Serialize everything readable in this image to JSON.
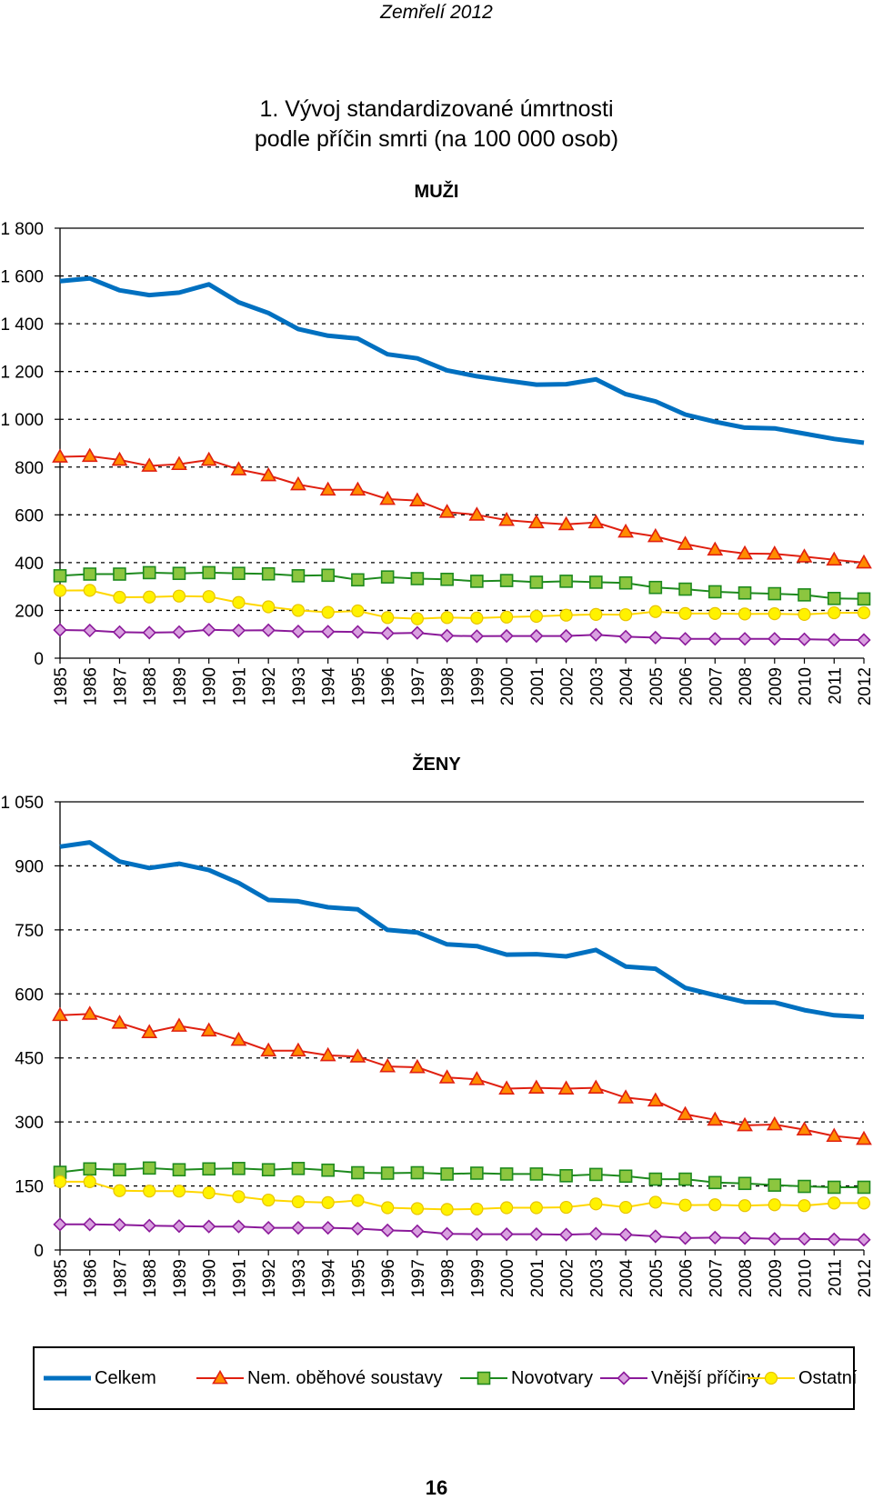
{
  "page": {
    "running_header": "Zemřelí 2012",
    "title_line1": "1. Vývoj standardizované úmrtnosti",
    "title_line2": "podle příčin smrti (na 100 000 osob)",
    "page_number": "16"
  },
  "legend": [
    {
      "key": "celkem",
      "label": "Celkem"
    },
    {
      "key": "obehove",
      "label": "Nem. oběhové soustavy"
    },
    {
      "key": "novotvary",
      "label": "Novotvary"
    },
    {
      "key": "vnejsi",
      "label": "Vnější příčiny"
    },
    {
      "key": "ostatni",
      "label": "Ostatní"
    }
  ],
  "styles": {
    "celkem": {
      "color": "#0070C0",
      "marker": "none"
    },
    "obehove": {
      "color": "#E02010",
      "fill": "#FF8C00",
      "marker": "triangle"
    },
    "novotvary": {
      "color": "#1E8A1E",
      "fill": "#8CC63F",
      "marker": "square"
    },
    "vnejsi": {
      "color": "#8B1A9A",
      "fill": "#D9A0E0",
      "marker": "diamond"
    },
    "ostatni": {
      "color": "#FFD700",
      "fill": "#FFF200",
      "marker": "circle"
    }
  },
  "chart_data": [
    {
      "type": "line",
      "title": "MUŽI",
      "categories": [
        "1985",
        "1986",
        "1987",
        "1988",
        "1989",
        "1990",
        "1991",
        "1992",
        "1993",
        "1994",
        "1995",
        "1996",
        "1997",
        "1998",
        "1999",
        "2000",
        "2001",
        "2002",
        "2003",
        "2004",
        "2005",
        "2006",
        "2007",
        "2008",
        "2009",
        "2010",
        "2011",
        "2012"
      ],
      "ylim": [
        0,
        1800
      ],
      "yticks": [
        0,
        200,
        400,
        600,
        800,
        1000,
        1200,
        1400,
        1600,
        1800
      ],
      "ytick_labels": [
        "0",
        "200",
        "400",
        "600",
        "800",
        "1 000",
        "1 200",
        "1 400",
        "1 600",
        "1 800"
      ],
      "series": [
        {
          "key": "celkem",
          "name": "Celkem",
          "values": [
            1578,
            1590,
            1540,
            1520,
            1530,
            1565,
            1490,
            1445,
            1378,
            1350,
            1338,
            1272,
            1255,
            1205,
            1180,
            1162,
            1145,
            1147,
            1167,
            1105,
            1075,
            1020,
            990,
            965,
            962,
            940,
            918,
            902
          ]
        },
        {
          "key": "obehove",
          "name": "Nem. oběhové soustavy",
          "values": [
            843,
            846,
            830,
            805,
            812,
            830,
            790,
            765,
            727,
            705,
            705,
            666,
            660,
            612,
            600,
            578,
            568,
            560,
            568,
            529,
            510,
            478,
            454,
            438,
            437,
            425,
            412,
            400
          ]
        },
        {
          "key": "novotvary",
          "name": "Novotvary",
          "values": [
            345,
            352,
            352,
            358,
            355,
            358,
            355,
            353,
            345,
            347,
            328,
            340,
            333,
            330,
            322,
            325,
            318,
            322,
            318,
            315,
            296,
            289,
            278,
            273,
            270,
            265,
            250,
            248
          ]
        },
        {
          "key": "ostatni",
          "name": "Ostatní",
          "values": [
            283,
            284,
            255,
            256,
            260,
            258,
            233,
            215,
            200,
            192,
            198,
            170,
            165,
            170,
            168,
            172,
            175,
            180,
            183,
            182,
            195,
            187,
            187,
            185,
            186,
            183,
            190,
            190
          ]
        },
        {
          "key": "vnejsi",
          "name": "Vnější příčiny",
          "values": [
            118,
            116,
            109,
            107,
            109,
            119,
            116,
            117,
            112,
            111,
            110,
            104,
            106,
            94,
            92,
            93,
            93,
            93,
            98,
            90,
            86,
            81,
            81,
            81,
            81,
            79,
            77,
            76
          ]
        }
      ]
    },
    {
      "type": "line",
      "title": "ŽENY",
      "categories": [
        "1985",
        "1986",
        "1987",
        "1988",
        "1989",
        "1990",
        "1991",
        "1992",
        "1993",
        "1994",
        "1995",
        "1996",
        "1997",
        "1998",
        "1999",
        "2000",
        "2001",
        "2002",
        "2003",
        "2004",
        "2005",
        "2006",
        "2007",
        "2008",
        "2009",
        "2010",
        "2011",
        "2012"
      ],
      "ylim": [
        0,
        1050
      ],
      "yticks": [
        0,
        150,
        300,
        450,
        600,
        750,
        900,
        1050
      ],
      "ytick_labels": [
        "0",
        "150",
        "300",
        "450",
        "600",
        "750",
        "900",
        "1 050"
      ],
      "series": [
        {
          "key": "celkem",
          "name": "Celkem",
          "values": [
            945,
            955,
            910,
            895,
            905,
            890,
            860,
            820,
            817,
            803,
            798,
            750,
            744,
            716,
            712,
            692,
            693,
            688,
            703,
            664,
            659,
            614,
            597,
            581,
            580,
            562,
            550,
            546
          ]
        },
        {
          "key": "obehove",
          "name": "Nem. oběhové soustavy",
          "values": [
            550,
            553,
            532,
            510,
            525,
            514,
            492,
            467,
            467,
            456,
            453,
            430,
            428,
            404,
            400,
            378,
            380,
            378,
            380,
            357,
            350,
            318,
            305,
            292,
            294,
            282,
            267,
            260
          ]
        },
        {
          "key": "novotvary",
          "name": "Novotvary",
          "values": [
            182,
            190,
            188,
            192,
            188,
            190,
            191,
            188,
            191,
            187,
            181,
            180,
            181,
            178,
            180,
            178,
            178,
            174,
            177,
            173,
            166,
            166,
            158,
            156,
            152,
            149,
            147,
            147
          ]
        },
        {
          "key": "ostatni",
          "name": "Ostatní",
          "values": [
            160,
            160,
            139,
            138,
            138,
            134,
            125,
            117,
            113,
            111,
            116,
            99,
            97,
            95,
            96,
            99,
            99,
            100,
            108,
            100,
            112,
            105,
            106,
            104,
            106,
            104,
            110,
            110
          ]
        },
        {
          "key": "vnejsi",
          "name": "Vnější příčiny",
          "values": [
            60,
            60,
            59,
            57,
            56,
            55,
            55,
            52,
            52,
            52,
            50,
            46,
            44,
            38,
            37,
            37,
            37,
            36,
            38,
            36,
            32,
            28,
            29,
            28,
            26,
            26,
            25,
            24
          ]
        }
      ]
    }
  ]
}
